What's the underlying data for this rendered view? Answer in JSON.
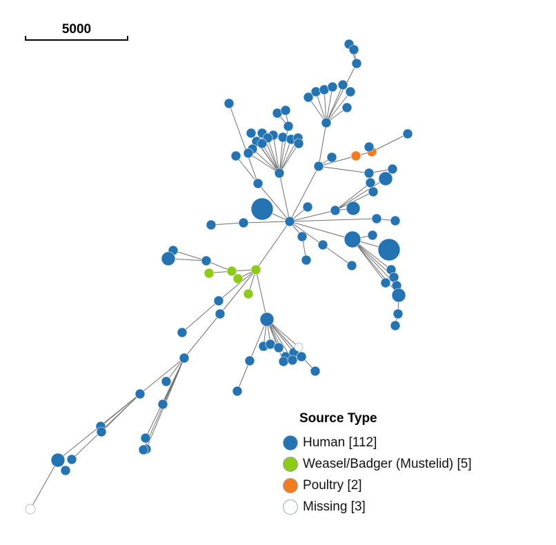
{
  "scale_bar": {
    "label": "5000"
  },
  "legend": {
    "title": "Source Type",
    "items": [
      {
        "key": "human",
        "label": "Human [112]",
        "color": "#2474b4"
      },
      {
        "key": "mustelid",
        "label": "Weasel/Badger (Mustelid) [5]",
        "color": "#8ccc16"
      },
      {
        "key": "poultry",
        "label": "Poultry [2]",
        "color": "#f47c20"
      },
      {
        "key": "missing",
        "label": "Missing [3]",
        "color": "#ffffff"
      }
    ]
  }
}
